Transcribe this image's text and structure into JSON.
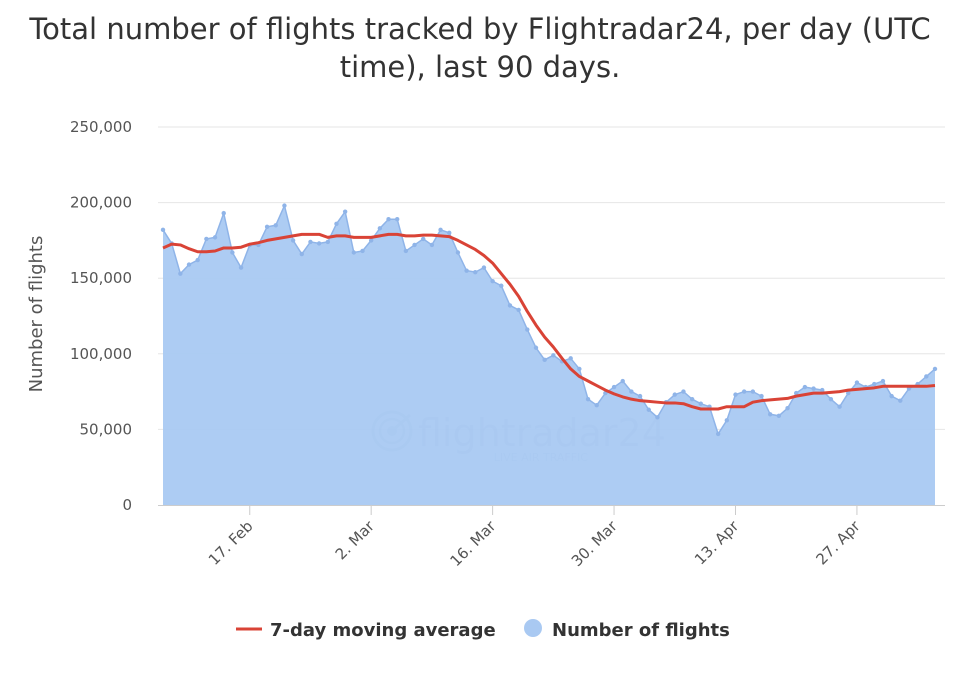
{
  "chart_data": {
    "type": "area",
    "title": "Total number of flights tracked by Flightradar24, per day (UTC time), last 90 days.",
    "ylabel": "Number of flights",
    "ylim": [
      0,
      250000
    ],
    "yticks": [
      0,
      50000,
      100000,
      150000,
      200000,
      250000
    ],
    "ytick_labels": [
      "0",
      "50,000",
      "100,000",
      "150,000",
      "200,000",
      "250,000"
    ],
    "xrange": [
      "2020-02-07",
      "2020-05-06"
    ],
    "xticks": [
      "2020-02-17",
      "2020-03-02",
      "2020-03-16",
      "2020-03-30",
      "2020-04-13",
      "2020-04-27"
    ],
    "xtick_labels": [
      "17. Feb",
      "2. Mar",
      "16. Mar",
      "30. Mar",
      "13. Apr",
      "27. Apr"
    ],
    "grid": true,
    "legend": "bottom-center",
    "x": [
      "2020-02-07",
      "2020-02-08",
      "2020-02-09",
      "2020-02-10",
      "2020-02-11",
      "2020-02-12",
      "2020-02-13",
      "2020-02-14",
      "2020-02-15",
      "2020-02-16",
      "2020-02-17",
      "2020-02-18",
      "2020-02-19",
      "2020-02-20",
      "2020-02-21",
      "2020-02-22",
      "2020-02-23",
      "2020-02-24",
      "2020-02-25",
      "2020-02-26",
      "2020-02-27",
      "2020-02-28",
      "2020-02-29",
      "2020-03-01",
      "2020-03-02",
      "2020-03-03",
      "2020-03-04",
      "2020-03-05",
      "2020-03-06",
      "2020-03-07",
      "2020-03-08",
      "2020-03-09",
      "2020-03-10",
      "2020-03-11",
      "2020-03-12",
      "2020-03-13",
      "2020-03-14",
      "2020-03-15",
      "2020-03-16",
      "2020-03-17",
      "2020-03-18",
      "2020-03-19",
      "2020-03-20",
      "2020-03-21",
      "2020-03-22",
      "2020-03-23",
      "2020-03-24",
      "2020-03-25",
      "2020-03-26",
      "2020-03-27",
      "2020-03-28",
      "2020-03-29",
      "2020-03-30",
      "2020-03-31",
      "2020-04-01",
      "2020-04-02",
      "2020-04-03",
      "2020-04-04",
      "2020-04-05",
      "2020-04-06",
      "2020-04-07",
      "2020-04-08",
      "2020-04-09",
      "2020-04-10",
      "2020-04-11",
      "2020-04-12",
      "2020-04-13",
      "2020-04-14",
      "2020-04-15",
      "2020-04-16",
      "2020-04-17",
      "2020-04-18",
      "2020-04-19",
      "2020-04-20",
      "2020-04-21",
      "2020-04-22",
      "2020-04-23",
      "2020-04-24",
      "2020-04-25",
      "2020-04-26",
      "2020-04-27",
      "2020-04-28",
      "2020-04-29",
      "2020-04-30",
      "2020-05-01",
      "2020-05-02",
      "2020-05-03",
      "2020-05-04",
      "2020-05-05",
      "2020-05-06"
    ],
    "series": [
      {
        "name": "Number of flights",
        "kind": "area",
        "color": "#a9c9f2",
        "line_color": "#8fb4e8",
        "values": [
          182000,
          173000,
          153000,
          159000,
          162000,
          176000,
          177000,
          193000,
          167000,
          157000,
          172000,
          172000,
          184000,
          185000,
          198000,
          175000,
          166000,
          174000,
          173000,
          174000,
          186000,
          194000,
          167000,
          168000,
          175000,
          183000,
          189000,
          189000,
          168000,
          172000,
          176000,
          172000,
          182000,
          180000,
          167000,
          155000,
          154000,
          157000,
          148000,
          145000,
          132000,
          129000,
          116000,
          104000,
          96000,
          99000,
          95000,
          97000,
          90000,
          70000,
          66000,
          74000,
          78000,
          82000,
          75000,
          72000,
          63000,
          58000,
          68000,
          73000,
          75000,
          70000,
          67000,
          65000,
          47000,
          56000,
          73000,
          75000,
          75000,
          72000,
          60000,
          59000,
          64000,
          74000,
          78000,
          77000,
          76000,
          70000,
          65000,
          74000,
          81000,
          78000,
          80000,
          82000,
          72000,
          69000,
          77000,
          80000,
          85000,
          90000
        ]
      },
      {
        "name": "7-day moving average",
        "kind": "line",
        "color": "#d94336",
        "values": [
          170000,
          172500,
          172000,
          169500,
          167500,
          167500,
          168000,
          170000,
          170000,
          170500,
          172500,
          173500,
          175000,
          176000,
          177000,
          178000,
          179000,
          179000,
          179000,
          177000,
          178000,
          178000,
          177000,
          177000,
          177000,
          178000,
          179000,
          179000,
          178000,
          178000,
          178500,
          178500,
          178000,
          177500,
          175000,
          172000,
          169000,
          165000,
          160000,
          153000,
          146000,
          138000,
          128000,
          119000,
          111000,
          104500,
          97000,
          90000,
          85000,
          82000,
          79000,
          76000,
          73500,
          71500,
          70000,
          69000,
          68500,
          68000,
          67500,
          67500,
          67000,
          65000,
          63500,
          63500,
          63500,
          65000,
          65000,
          65000,
          68000,
          69000,
          69500,
          70000,
          70500,
          72000,
          73000,
          74000,
          74000,
          74500,
          75000,
          76000,
          76500,
          77000,
          77500,
          78500,
          78500,
          78500,
          78500,
          78500,
          78500,
          79000
        ]
      }
    ],
    "legend_entries": [
      "7-day moving average",
      "Number of flights"
    ]
  },
  "watermark": {
    "brand": "flightradar24",
    "tagline": "LIVE AIR TRAFFIC"
  },
  "colors": {
    "area": "#a9c9f2",
    "area_line": "#8fb4e8",
    "average": "#d94336",
    "grid": "#e6e6e6",
    "axis": "#cccccc",
    "text": "#555555"
  }
}
